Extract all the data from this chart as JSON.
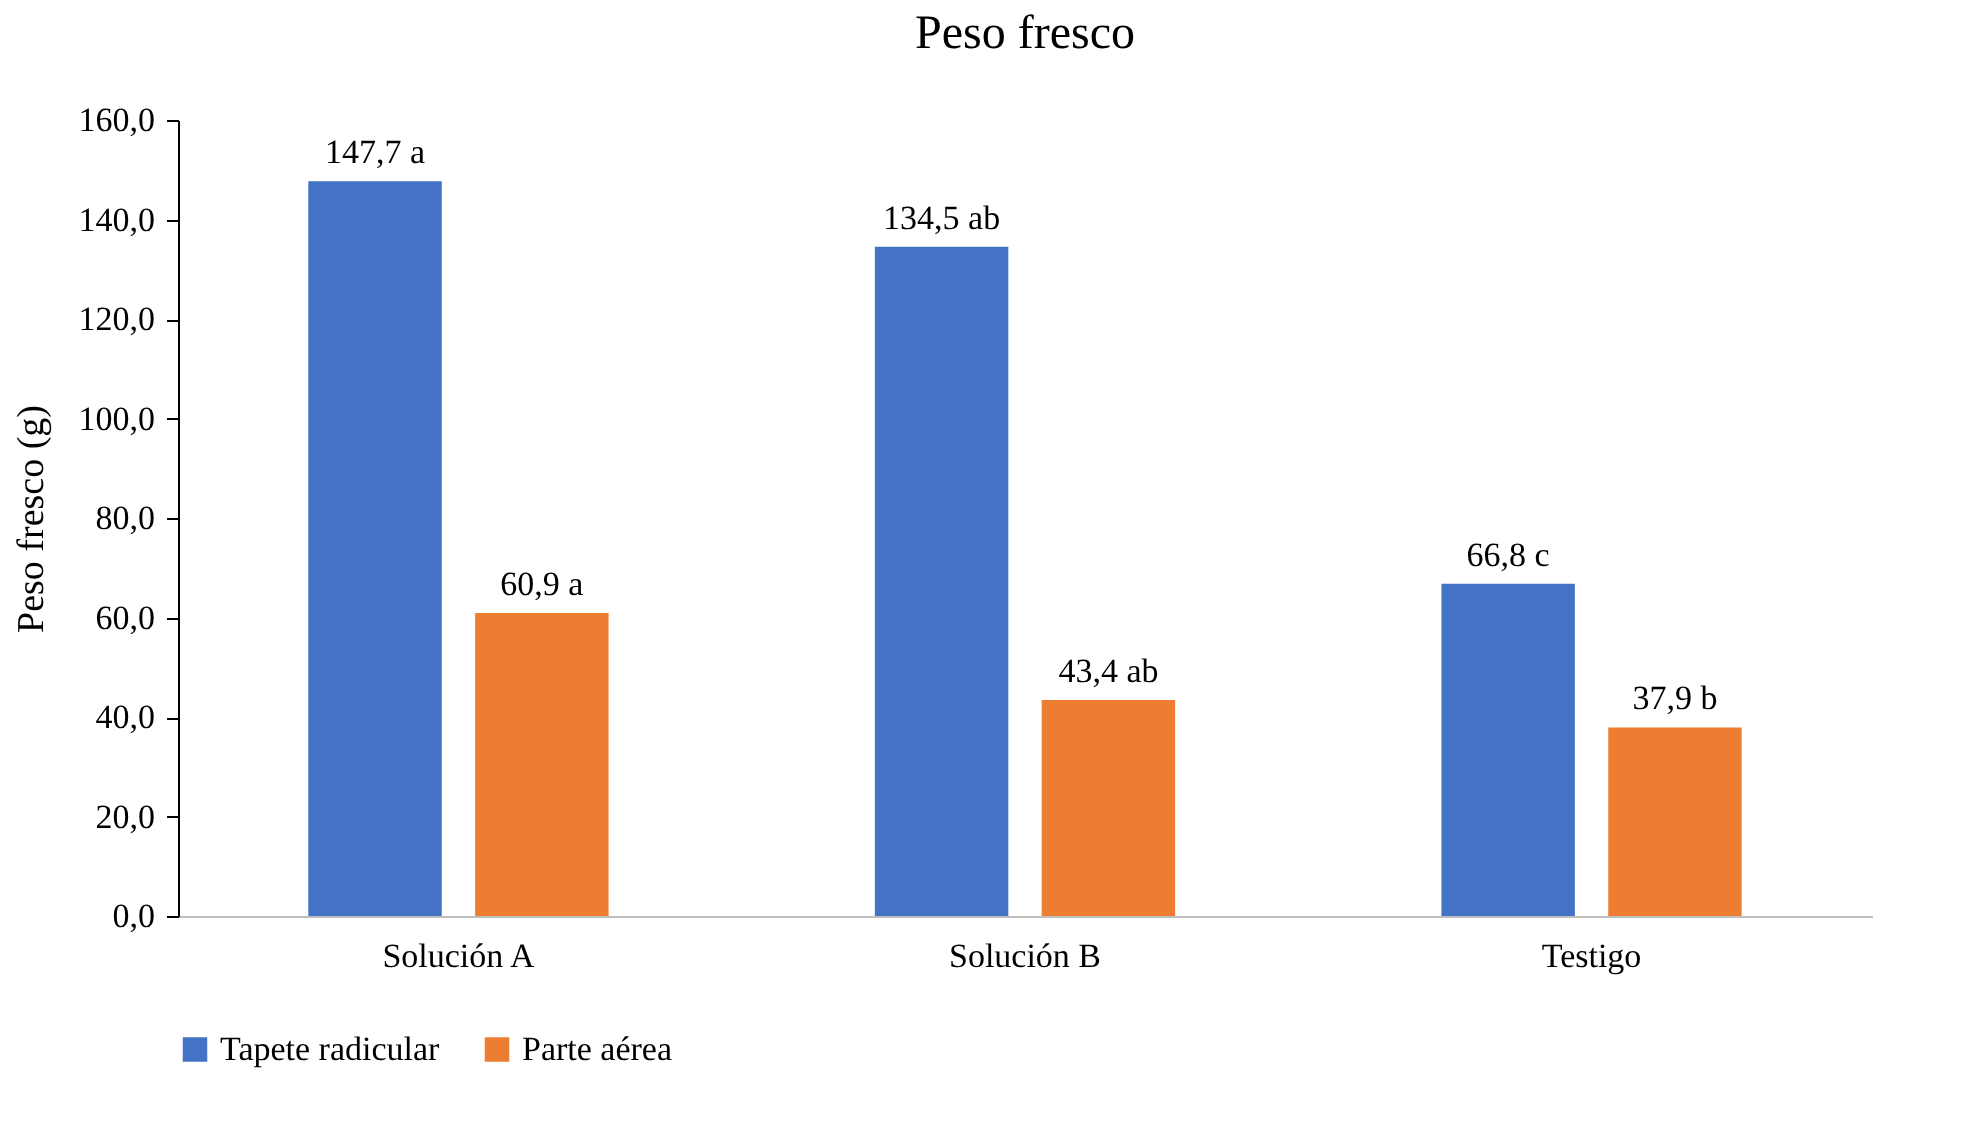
{
  "chart_data": {
    "type": "bar",
    "title": "Peso fresco",
    "ylabel": "Peso fresco (g)",
    "categories": [
      "Solución A",
      "Solución B",
      "Testigo"
    ],
    "series": [
      {
        "name": "Tapete radicular",
        "color": "#4472c4",
        "values": [
          147.7,
          134.5,
          66.8
        ],
        "value_labels": [
          "147,7 a",
          "134,5 ab",
          "66,8 c"
        ]
      },
      {
        "name": "Parte aérea",
        "color": "#ed7d31",
        "values": [
          60.9,
          43.4,
          37.9
        ],
        "value_labels": [
          "60,9 a",
          "43,4 ab",
          "37,9 b"
        ]
      }
    ],
    "ylim": [
      0,
      160
    ],
    "yticks": [
      {
        "value": 0,
        "label": "0,0"
      },
      {
        "value": 20,
        "label": "20,0"
      },
      {
        "value": 40,
        "label": "40,0"
      },
      {
        "value": 60,
        "label": "60,0"
      },
      {
        "value": 80,
        "label": "80,0"
      },
      {
        "value": 100,
        "label": "100,0"
      },
      {
        "value": 120,
        "label": "120,0"
      },
      {
        "value": 140,
        "label": "140,0"
      },
      {
        "value": 160,
        "label": "160,0"
      }
    ],
    "grid": false,
    "legend": "bottom"
  }
}
